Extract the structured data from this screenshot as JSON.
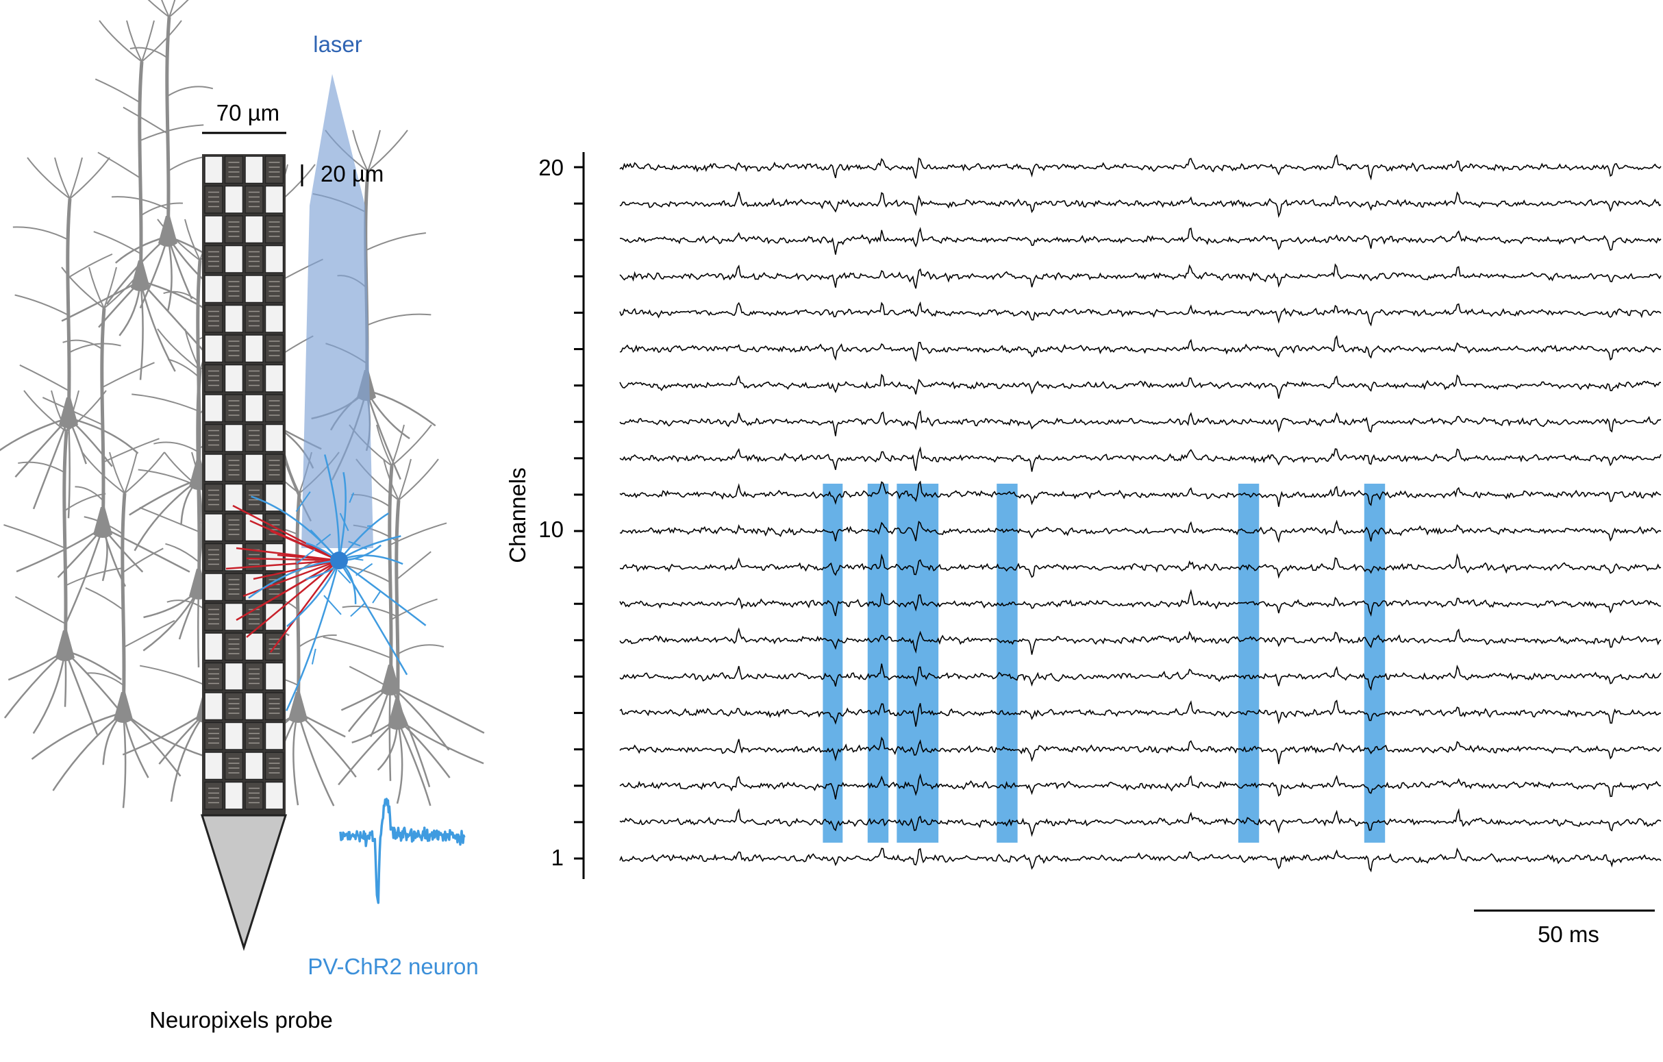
{
  "probe_panel": {
    "laser_label": "laser",
    "scale_width_label": "70 µm",
    "scale_height_label": "20 µm",
    "neuron_label": "PV-ChR2 neuron",
    "probe_label": "Neuropixels probe"
  },
  "traces_panel": {
    "y_axis_title": "Channels",
    "y_ticks": [
      "20",
      "10",
      "1"
    ],
    "time_scale_label": "50 ms",
    "channel_count": 20,
    "laser_pulse_channel_span": [
      2,
      11
    ],
    "laser_pulse_time_fractions": [
      [
        0.195,
        0.214
      ],
      [
        0.238,
        0.258
      ],
      [
        0.266,
        0.306
      ],
      [
        0.362,
        0.382
      ],
      [
        0.594,
        0.614
      ],
      [
        0.715,
        0.735
      ]
    ],
    "spike_time_fractions": [
      0.114,
      0.207,
      0.252,
      0.284,
      0.288,
      0.396,
      0.548,
      0.633,
      0.688,
      0.721,
      0.805,
      0.952
    ]
  },
  "colors": {
    "trace": "#000000",
    "laser_cone": "#7fa3d6",
    "laser_pulse": "#56a8e4",
    "neuron_blue": "#3f9be0",
    "label_blue": "#3b8fd9",
    "laser_label_blue": "#2f64b3",
    "neurons_gray": "#8c8c8c",
    "connections_red": "#c8202a",
    "probe_tip": "#c8c8c8",
    "probe_body": "#3a3836"
  }
}
